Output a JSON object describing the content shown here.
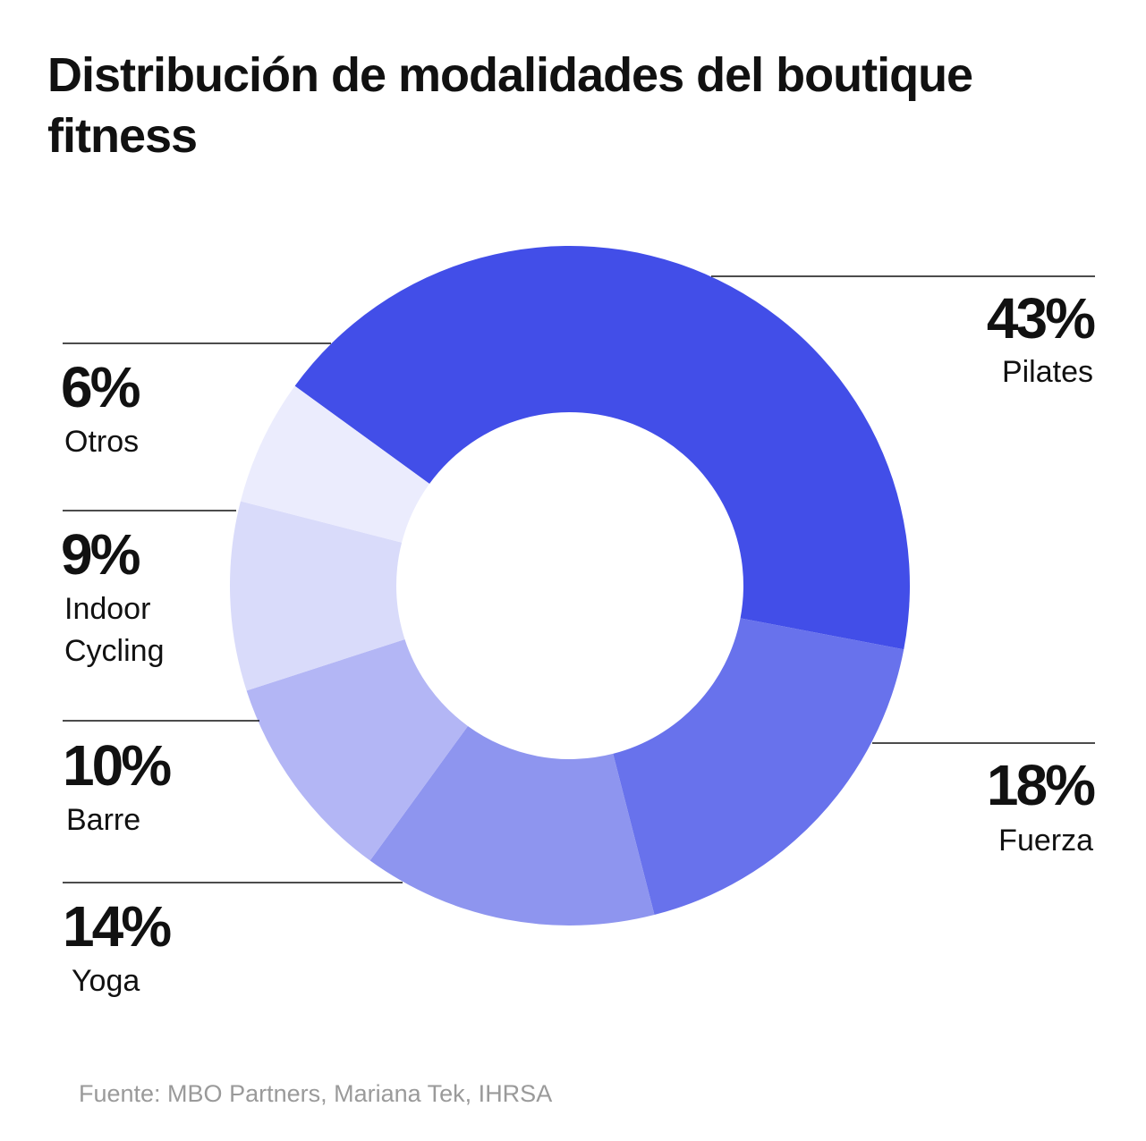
{
  "title": "Distribución de modalidades del boutique fitness",
  "source": "Fuente: MBO Partners, Mariana Tek, IHRSA",
  "chart_data": {
    "type": "pie",
    "variant": "donut",
    "title": "Distribución de modalidades del boutique fitness",
    "unit": "%",
    "slices": [
      {
        "label": "Pilates",
        "value": 43,
        "value_label": "43%",
        "color": "#424ee8",
        "label_lines": [
          "Pilates"
        ]
      },
      {
        "label": "Fuerza",
        "value": 18,
        "value_label": "18%",
        "color": "#6872ec",
        "label_lines": [
          "Fuerza"
        ]
      },
      {
        "label": "Yoga",
        "value": 14,
        "value_label": "14%",
        "color": "#8e95ef",
        "label_lines": [
          "Yoga"
        ]
      },
      {
        "label": "Barre",
        "value": 10,
        "value_label": "10%",
        "color": "#b3b6f5",
        "label_lines": [
          "Barre"
        ]
      },
      {
        "label": "Indoor Cycling",
        "value": 9,
        "value_label": "9%",
        "color": "#d9dbfa",
        "label_lines": [
          "Indoor",
          "Cycling"
        ]
      },
      {
        "label": "Otros",
        "value": 6,
        "value_label": "6%",
        "color": "#ebecfd",
        "label_lines": [
          "Otros"
        ]
      }
    ]
  }
}
